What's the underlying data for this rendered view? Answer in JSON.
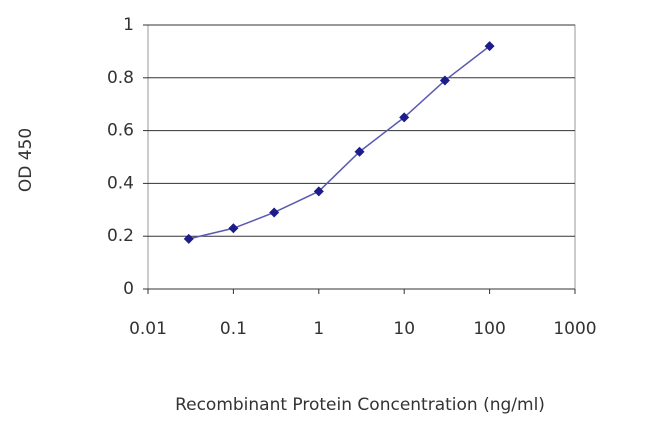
{
  "chart_data": {
    "type": "line",
    "x_label": "Recombinant Protein Concentration (ng/ml)",
    "y_label": "OD 450",
    "x": [
      0.03,
      0.1,
      0.3,
      1,
      3,
      10,
      30,
      100
    ],
    "series": [
      {
        "color": "#1c1c8a",
        "values": [
          0.19,
          0.23,
          0.29,
          0.37,
          0.52,
          0.65,
          0.79,
          0.92
        ]
      }
    ],
    "xlim": [
      0.01,
      1000
    ],
    "xticks": [
      0.01,
      0.1,
      1,
      10,
      100,
      1000
    ],
    "xscale": "log",
    "ylim": [
      0,
      1
    ],
    "yticks": [
      0,
      0.2,
      0.4,
      0.6,
      0.8,
      1
    ],
    "grid": true
  }
}
